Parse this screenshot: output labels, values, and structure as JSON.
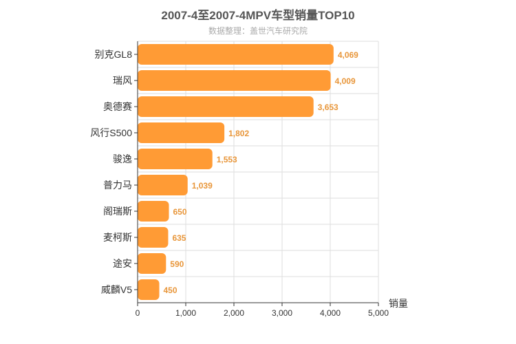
{
  "chart_data": {
    "type": "bar",
    "orientation": "horizontal",
    "title": "2007-4至2007-4MPV车型销量TOP10",
    "subtitle": "数据整理：盖世汽车研究院",
    "xlabel": "销量",
    "ylabel": "",
    "xlim": [
      0,
      5000
    ],
    "xticks": [
      "0",
      "1,000",
      "2,000",
      "3,000",
      "4,000",
      "5,000"
    ],
    "grid": true,
    "categories": [
      "别克GL8",
      "瑞风",
      "奥德赛",
      "风行S500",
      "骏逸",
      "普力马",
      "阁瑞斯",
      "麦柯斯",
      "途安",
      "威麟V5"
    ],
    "values": [
      4069,
      4009,
      3653,
      1802,
      1553,
      1039,
      650,
      635,
      590,
      450
    ],
    "value_labels": [
      "4,069",
      "4,009",
      "3,653",
      "1,802",
      "1,553",
      "1,039",
      "650",
      "635",
      "590",
      "450"
    ],
    "colors": {
      "bar": "#ff9b35",
      "label": "#e8963a",
      "grid": "#dddddd",
      "axis": "#333333"
    }
  }
}
